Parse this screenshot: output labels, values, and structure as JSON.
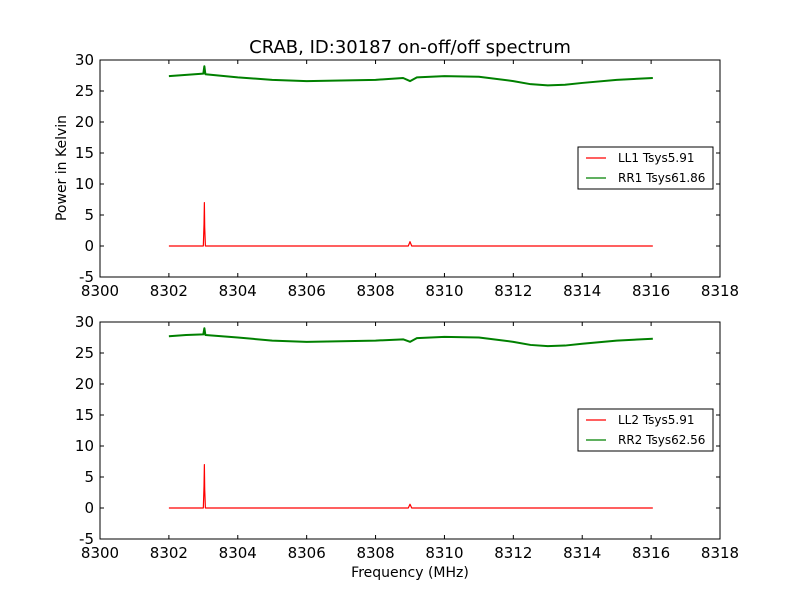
{
  "chart_data": [
    {
      "type": "line",
      "title": "CRAB, ID:30187 on-off/off spectrum",
      "ylabel": "Power in Kelvin",
      "xlabel": "",
      "xlim": [
        8300,
        8318
      ],
      "ylim": [
        -5,
        30
      ],
      "x_ticks": [
        8300,
        8302,
        8304,
        8306,
        8308,
        8310,
        8312,
        8314,
        8316,
        8318
      ],
      "y_ticks": [
        -5,
        0,
        5,
        10,
        15,
        20,
        25,
        30
      ],
      "grid": false,
      "legend_position": "center-right",
      "series": [
        {
          "name": "LL1 Tsys5.91",
          "color": "#ff0000",
          "x": [
            8302.0,
            8303.0,
            8303.02,
            8303.03,
            8303.04,
            8303.06,
            8304,
            8306,
            8308,
            8308.95,
            8309.0,
            8309.05,
            8310,
            8312,
            8314,
            8316.05
          ],
          "y": [
            0.0,
            0.0,
            3.5,
            7.0,
            3.0,
            0.0,
            0.0,
            0.0,
            0.0,
            0.0,
            0.7,
            0.0,
            0.0,
            0.0,
            0.0,
            0.0
          ]
        },
        {
          "name": "RR1 Tsys61.86",
          "color": "#008000",
          "x": [
            8302.0,
            8302.5,
            8303.0,
            8303.03,
            8303.06,
            8304,
            8305,
            8306,
            8307,
            8308,
            8308.8,
            8309.0,
            8309.2,
            8310,
            8311,
            8312,
            8312.5,
            8313,
            8313.5,
            8314,
            8315,
            8316.05
          ],
          "y": [
            27.4,
            27.6,
            27.8,
            29.0,
            27.7,
            27.2,
            26.8,
            26.6,
            26.7,
            26.8,
            27.1,
            26.6,
            27.2,
            27.4,
            27.3,
            26.6,
            26.1,
            25.9,
            26.0,
            26.3,
            26.8,
            27.1
          ]
        }
      ]
    },
    {
      "type": "line",
      "title": "",
      "ylabel": "",
      "xlabel": "Frequency (MHz)",
      "xlim": [
        8300,
        8318
      ],
      "ylim": [
        -5,
        30
      ],
      "x_ticks": [
        8300,
        8302,
        8304,
        8306,
        8308,
        8310,
        8312,
        8314,
        8316,
        8318
      ],
      "y_ticks": [
        -5,
        0,
        5,
        10,
        15,
        20,
        25,
        30
      ],
      "grid": false,
      "legend_position": "center-right",
      "series": [
        {
          "name": "LL2 Tsys5.91",
          "color": "#ff0000",
          "x": [
            8302.0,
            8303.0,
            8303.02,
            8303.03,
            8303.04,
            8303.06,
            8304,
            8306,
            8308,
            8308.95,
            8309.0,
            8309.05,
            8310,
            8312,
            8314,
            8316.05
          ],
          "y": [
            0.0,
            0.0,
            3.5,
            7.0,
            3.0,
            0.0,
            0.0,
            0.0,
            0.0,
            0.0,
            0.6,
            0.0,
            0.0,
            0.0,
            0.0,
            0.0
          ]
        },
        {
          "name": "RR2 Tsys62.56",
          "color": "#008000",
          "x": [
            8302.0,
            8302.5,
            8303.0,
            8303.03,
            8303.06,
            8304,
            8305,
            8306,
            8307,
            8308,
            8308.8,
            8309.0,
            8309.2,
            8310,
            8311,
            8312,
            8312.5,
            8313,
            8313.5,
            8314,
            8315,
            8316.05
          ],
          "y": [
            27.7,
            27.9,
            28.0,
            29.0,
            27.9,
            27.5,
            27.0,
            26.8,
            26.9,
            27.0,
            27.2,
            26.8,
            27.4,
            27.6,
            27.5,
            26.8,
            26.3,
            26.1,
            26.2,
            26.5,
            27.0,
            27.3
          ]
        }
      ]
    }
  ]
}
